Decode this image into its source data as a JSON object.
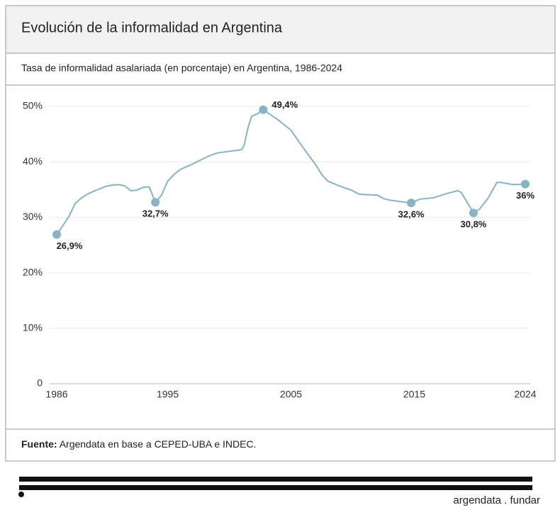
{
  "chart_data": {
    "type": "line",
    "title": "Evolución de la informalidad en Argentina",
    "subtitle": "Tasa de informalidad asalariada (en porcentaje) en Argentina, 1986-2024",
    "x": [
      1986,
      1986.5,
      1987,
      1987.5,
      1988,
      1988.5,
      1989,
      1990,
      1990.5,
      1991,
      1991.5,
      1992,
      1992.5,
      1993,
      1993.5,
      1994,
      1994.5,
      1995,
      1995.5,
      1996,
      1997,
      1998,
      1998.5,
      1999,
      2000,
      2001,
      2001.2,
      2001.5,
      2001.8,
      2002.3,
      2002.75,
      2004,
      2005,
      2006,
      2007,
      2007.5,
      2008,
      2009,
      2010,
      2010.5,
      2011,
      2012,
      2012.5,
      2013,
      2014,
      2014.75,
      2015.5,
      2016,
      2016.5,
      2017.5,
      2018,
      2018.5,
      2018.8,
      2019.8,
      2020.3,
      2021,
      2021.7,
      2022,
      2022.5,
      2023,
      2024
    ],
    "values": [
      26.9,
      28.5,
      30.2,
      32.5,
      33.5,
      34.2,
      34.7,
      35.6,
      35.8,
      35.9,
      35.7,
      34.8,
      34.9,
      35.4,
      35.5,
      32.7,
      34,
      36.5,
      37.7,
      38.6,
      39.6,
      40.7,
      41.2,
      41.6,
      41.9,
      42.2,
      43,
      46,
      48.2,
      48.7,
      49.4,
      47.5,
      45.7,
      42.5,
      39.5,
      37.7,
      36.5,
      35.6,
      34.8,
      34.2,
      34.1,
      34,
      33.4,
      33.1,
      32.8,
      32.6,
      33.3,
      33.4,
      33.5,
      34.2,
      34.5,
      34.8,
      34.5,
      30.8,
      31.5,
      33.5,
      36.3,
      36.3,
      36.1,
      35.9,
      36
    ],
    "color": "#86b4c2",
    "points": {
      "x": [
        1986,
        1994,
        2002.75,
        2014.75,
        2019.8,
        2024
      ],
      "values": [
        26.9,
        32.7,
        49.4,
        32.6,
        30.8,
        36
      ],
      "value_labels": [
        "26,9%",
        "32,7%",
        "49,4%",
        "32,6%",
        "30,8%",
        "36%"
      ]
    },
    "xlim": [
      1986,
      2024
    ],
    "ylim": [
      0,
      50
    ],
    "xticks": [
      1986,
      1995,
      2005,
      2015,
      2024
    ],
    "yticks": [
      0,
      {
        "value": 10,
        "label": "10%"
      },
      {
        "value": 20,
        "label": "20%"
      },
      {
        "value": 30,
        "label": "30%"
      },
      {
        "value": 40,
        "label": "40%"
      },
      {
        "value": 50,
        "label": "50%"
      }
    ],
    "grid": true
  },
  "source": {
    "label": "Fuente:",
    "text": "Argendata en base a CEPED-UBA e INDEC."
  },
  "brand": "argendata . fundar"
}
